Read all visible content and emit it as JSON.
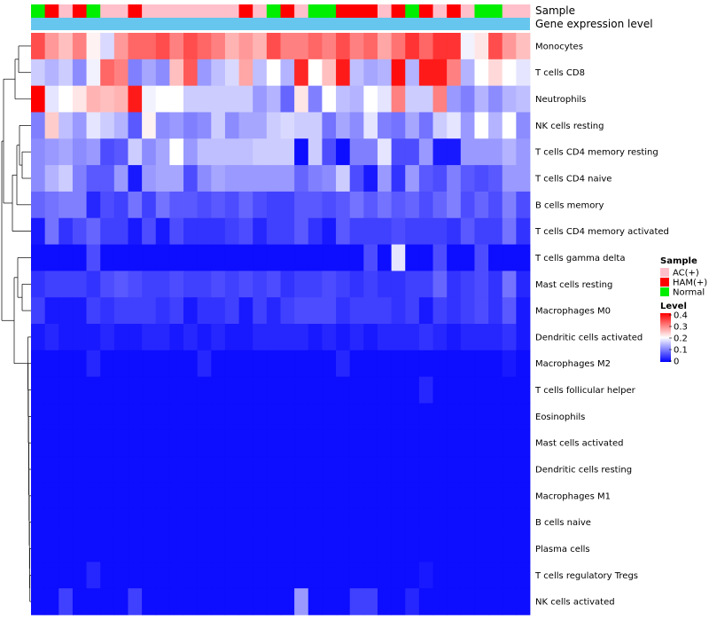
{
  "chart_data": {
    "type": "heatmap",
    "annotation_rows": [
      "Sample",
      "Gene expression level"
    ],
    "row_labels": [
      "Monocytes",
      "T cells CD8",
      "Neutrophils",
      "NK cells resting",
      "T cells CD4 memory resting",
      "T cells CD4 naive",
      "B cells memory",
      "T cells CD4 memory activated",
      "T cells gamma delta",
      "Mast cells resting",
      "Macrophages M0",
      "Dendritic cells activated",
      "Macrophages M2",
      "T cells follicular helper",
      "Eosinophils",
      "Mast cells activated",
      "Dendritic cells resting",
      "Macrophages M1",
      "B cells naive",
      "Plasma cells",
      "T cells regulatory  Tregs",
      "NK cells activated"
    ],
    "sample_groups": [
      "Normal",
      "HAM(+)",
      "AC(+)",
      "HAM(+)",
      "Normal",
      "AC(+)",
      "AC(+)",
      "HAM(+)",
      "AC(+)",
      "AC(+)",
      "AC(+)",
      "AC(+)",
      "AC(+)",
      "AC(+)",
      "AC(+)",
      "HAM(+)",
      "AC(+)",
      "Normal",
      "HAM(+)",
      "AC(+)",
      "Normal",
      "Normal",
      "HAM(+)",
      "HAM(+)",
      "HAM(+)",
      "AC(+)",
      "HAM(+)",
      "Normal",
      "HAM(+)",
      "AC(+)",
      "HAM(+)",
      "AC(+)",
      "Normal",
      "Normal",
      "AC(+)",
      "AC(+)"
    ],
    "gene_expression_color": "#66c6ee",
    "values": [
      [
        0.34,
        0.28,
        0.25,
        0.3,
        0.21,
        0.17,
        0.28,
        0.32,
        0.32,
        0.34,
        0.3,
        0.34,
        0.32,
        0.3,
        0.26,
        0.28,
        0.26,
        0.34,
        0.3,
        0.3,
        0.32,
        0.3,
        0.34,
        0.3,
        0.32,
        0.27,
        0.31,
        0.36,
        0.32,
        0.36,
        0.36,
        0.19,
        0.22,
        0.34,
        0.28,
        0.25
      ],
      [
        0.16,
        0.14,
        0.16,
        0.11,
        0.19,
        0.32,
        0.3,
        0.1,
        0.13,
        0.11,
        0.25,
        0.33,
        0.12,
        0.15,
        0.17,
        0.27,
        0.15,
        0.2,
        0.14,
        0.37,
        0.2,
        0.25,
        0.38,
        0.15,
        0.13,
        0.14,
        0.39,
        0.14,
        0.38,
        0.38,
        0.3,
        0.14,
        0.2,
        0.23,
        0.2,
        0.18
      ],
      [
        0.4,
        0.18,
        0.2,
        0.22,
        0.26,
        0.25,
        0.26,
        0.38,
        0.19,
        0.2,
        0.2,
        0.16,
        0.16,
        0.16,
        0.16,
        0.16,
        0.12,
        0.14,
        0.08,
        0.22,
        0.1,
        0.2,
        0.15,
        0.14,
        0.2,
        0.18,
        0.3,
        0.16,
        0.16,
        0.3,
        0.12,
        0.1,
        0.14,
        0.11,
        0.14,
        0.15
      ],
      [
        0.1,
        0.24,
        0.15,
        0.12,
        0.18,
        0.16,
        0.14,
        0.07,
        0.21,
        0.11,
        0.12,
        0.1,
        0.11,
        0.16,
        0.11,
        0.13,
        0.13,
        0.16,
        0.17,
        0.16,
        0.16,
        0.09,
        0.13,
        0.11,
        0.18,
        0.1,
        0.09,
        0.13,
        0.09,
        0.16,
        0.18,
        0.12,
        0.2,
        0.14,
        0.2,
        0.11
      ],
      [
        0.11,
        0.12,
        0.13,
        0.11,
        0.12,
        0.06,
        0.07,
        0.16,
        0.11,
        0.13,
        0.2,
        0.12,
        0.15,
        0.15,
        0.15,
        0.15,
        0.16,
        0.16,
        0.16,
        0.01,
        0.16,
        0.06,
        0.01,
        0.1,
        0.1,
        0.18,
        0.06,
        0.06,
        0.12,
        0.02,
        0.02,
        0.12,
        0.12,
        0.12,
        0.14,
        0.12
      ],
      [
        0.11,
        0.14,
        0.16,
        0.1,
        0.07,
        0.07,
        0.12,
        0.02,
        0.12,
        0.13,
        0.13,
        0.06,
        0.11,
        0.13,
        0.12,
        0.12,
        0.12,
        0.12,
        0.12,
        0.08,
        0.1,
        0.11,
        0.16,
        0.06,
        0.02,
        0.12,
        0.04,
        0.12,
        0.07,
        0.06,
        0.1,
        0.07,
        0.06,
        0.07,
        0.12,
        0.12
      ],
      [
        0.08,
        0.09,
        0.1,
        0.1,
        0.03,
        0.06,
        0.05,
        0.09,
        0.05,
        0.09,
        0.07,
        0.07,
        0.06,
        0.07,
        0.06,
        0.08,
        0.06,
        0.05,
        0.05,
        0.07,
        0.07,
        0.06,
        0.07,
        0.09,
        0.07,
        0.09,
        0.07,
        0.08,
        0.06,
        0.08,
        0.1,
        0.06,
        0.08,
        0.06,
        0.1,
        0.06
      ],
      [
        0.02,
        0.09,
        0.04,
        0.06,
        0.08,
        0.05,
        0.05,
        0.02,
        0.06,
        0.02,
        0.06,
        0.04,
        0.04,
        0.04,
        0.05,
        0.06,
        0.03,
        0.05,
        0.05,
        0.07,
        0.04,
        0.02,
        0.07,
        0.05,
        0.05,
        0.05,
        0.06,
        0.05,
        0.05,
        0.05,
        0.04,
        0.07,
        0.05,
        0.05,
        0.09,
        0.04
      ],
      [
        0.01,
        0.01,
        0.01,
        0.01,
        0.06,
        0.01,
        0.01,
        0.01,
        0.01,
        0.01,
        0.01,
        0.01,
        0.01,
        0.01,
        0.01,
        0.01,
        0.01,
        0.01,
        0.01,
        0.01,
        0.01,
        0.01,
        0.01,
        0.01,
        0.06,
        0.01,
        0.18,
        0.01,
        0.01,
        0.06,
        0.01,
        0.01,
        0.06,
        0.01,
        0.01,
        0.01
      ],
      [
        0.04,
        0.05,
        0.05,
        0.05,
        0.04,
        0.06,
        0.07,
        0.06,
        0.05,
        0.05,
        0.06,
        0.05,
        0.05,
        0.06,
        0.05,
        0.06,
        0.05,
        0.06,
        0.04,
        0.05,
        0.05,
        0.06,
        0.05,
        0.04,
        0.05,
        0.04,
        0.04,
        0.05,
        0.05,
        0.08,
        0.04,
        0.05,
        0.06,
        0.04,
        0.09,
        0.03
      ],
      [
        0.05,
        0.02,
        0.02,
        0.02,
        0.05,
        0.04,
        0.05,
        0.05,
        0.05,
        0.04,
        0.05,
        0.02,
        0.04,
        0.04,
        0.05,
        0.02,
        0.05,
        0.03,
        0.05,
        0.06,
        0.06,
        0.06,
        0.04,
        0.05,
        0.05,
        0.05,
        0.04,
        0.05,
        0.02,
        0.05,
        0.04,
        0.05,
        0.06,
        0.04,
        0.07,
        0.02
      ],
      [
        0.02,
        0.03,
        0.02,
        0.02,
        0.02,
        0.03,
        0.02,
        0.02,
        0.03,
        0.03,
        0.02,
        0.03,
        0.02,
        0.03,
        0.02,
        0.02,
        0.03,
        0.03,
        0.03,
        0.03,
        0.02,
        0.03,
        0.02,
        0.03,
        0.02,
        0.03,
        0.03,
        0.03,
        0.04,
        0.03,
        0.02,
        0.03,
        0.03,
        0.03,
        0.04,
        0.02
      ],
      [
        0.01,
        0.01,
        0.01,
        0.01,
        0.03,
        0.01,
        0.01,
        0.01,
        0.01,
        0.01,
        0.01,
        0.01,
        0.03,
        0.01,
        0.01,
        0.01,
        0.01,
        0.01,
        0.01,
        0.01,
        0.01,
        0.01,
        0.03,
        0.01,
        0.01,
        0.01,
        0.01,
        0.01,
        0.01,
        0.01,
        0.01,
        0.01,
        0.01,
        0.01,
        0.02,
        0.01
      ],
      [
        0.01,
        0.01,
        0.01,
        0.01,
        0.01,
        0.01,
        0.01,
        0.01,
        0.01,
        0.01,
        0.01,
        0.01,
        0.01,
        0.01,
        0.01,
        0.01,
        0.01,
        0.01,
        0.01,
        0.01,
        0.01,
        0.01,
        0.01,
        0.01,
        0.01,
        0.01,
        0.01,
        0.01,
        0.03,
        0.01,
        0.01,
        0.01,
        0.01,
        0.01,
        0.01,
        0.01
      ],
      [
        0.01,
        0.01,
        0.01,
        0.01,
        0.01,
        0.01,
        0.01,
        0.01,
        0.01,
        0.01,
        0.01,
        0.01,
        0.01,
        0.01,
        0.01,
        0.01,
        0.01,
        0.01,
        0.01,
        0.01,
        0.01,
        0.01,
        0.01,
        0.01,
        0.01,
        0.01,
        0.01,
        0.01,
        0.01,
        0.01,
        0.01,
        0.01,
        0.01,
        0.01,
        0.01,
        0.01
      ],
      [
        0.01,
        0.01,
        0.01,
        0.01,
        0.01,
        0.01,
        0.01,
        0.01,
        0.01,
        0.01,
        0.01,
        0.01,
        0.01,
        0.01,
        0.01,
        0.01,
        0.01,
        0.01,
        0.01,
        0.01,
        0.01,
        0.01,
        0.01,
        0.01,
        0.01,
        0.01,
        0.01,
        0.01,
        0.01,
        0.01,
        0.01,
        0.01,
        0.01,
        0.01,
        0.01,
        0.01
      ],
      [
        0.01,
        0.01,
        0.01,
        0.01,
        0.01,
        0.01,
        0.01,
        0.01,
        0.01,
        0.01,
        0.01,
        0.01,
        0.01,
        0.01,
        0.01,
        0.01,
        0.01,
        0.01,
        0.01,
        0.01,
        0.01,
        0.01,
        0.01,
        0.01,
        0.01,
        0.01,
        0.01,
        0.01,
        0.01,
        0.01,
        0.01,
        0.01,
        0.01,
        0.01,
        0.01,
        0.01
      ],
      [
        0.01,
        0.01,
        0.01,
        0.01,
        0.01,
        0.01,
        0.01,
        0.01,
        0.01,
        0.01,
        0.01,
        0.01,
        0.01,
        0.01,
        0.01,
        0.01,
        0.01,
        0.01,
        0.01,
        0.01,
        0.01,
        0.01,
        0.01,
        0.01,
        0.01,
        0.01,
        0.01,
        0.01,
        0.01,
        0.01,
        0.01,
        0.01,
        0.01,
        0.01,
        0.01,
        0.01
      ],
      [
        0.01,
        0.01,
        0.01,
        0.01,
        0.01,
        0.01,
        0.01,
        0.01,
        0.01,
        0.01,
        0.01,
        0.01,
        0.01,
        0.01,
        0.01,
        0.01,
        0.01,
        0.01,
        0.01,
        0.01,
        0.01,
        0.01,
        0.01,
        0.01,
        0.01,
        0.01,
        0.01,
        0.01,
        0.01,
        0.01,
        0.01,
        0.01,
        0.01,
        0.01,
        0.01,
        0.01
      ],
      [
        0.01,
        0.01,
        0.01,
        0.01,
        0.01,
        0.01,
        0.01,
        0.01,
        0.01,
        0.01,
        0.01,
        0.01,
        0.01,
        0.01,
        0.01,
        0.01,
        0.01,
        0.01,
        0.01,
        0.01,
        0.01,
        0.01,
        0.01,
        0.01,
        0.01,
        0.01,
        0.01,
        0.01,
        0.01,
        0.01,
        0.01,
        0.01,
        0.01,
        0.01,
        0.01,
        0.01
      ],
      [
        0.01,
        0.01,
        0.01,
        0.01,
        0.03,
        0.01,
        0.01,
        0.01,
        0.01,
        0.01,
        0.01,
        0.01,
        0.01,
        0.01,
        0.01,
        0.01,
        0.01,
        0.01,
        0.01,
        0.01,
        0.01,
        0.01,
        0.01,
        0.01,
        0.01,
        0.01,
        0.01,
        0.01,
        0.02,
        0.01,
        0.01,
        0.01,
        0.01,
        0.01,
        0.01,
        0.01
      ],
      [
        0.01,
        0.01,
        0.05,
        0.01,
        0.01,
        0.01,
        0.01,
        0.05,
        0.01,
        0.01,
        0.01,
        0.01,
        0.01,
        0.01,
        0.01,
        0.01,
        0.01,
        0.01,
        0.01,
        0.12,
        0.01,
        0.01,
        0.01,
        0.05,
        0.05,
        0.01,
        0.01,
        0.03,
        0.01,
        0.01,
        0.01,
        0.01,
        0.01,
        0.01,
        0.01,
        0.01
      ]
    ],
    "scale": {
      "min": 0,
      "max": 0.4,
      "low_color": "#0000ff",
      "mid_color": "#ffffff",
      "high_color": "#ff0000"
    },
    "legend": {
      "sample_title": "Sample",
      "sample_items": [
        {
          "label": "AC(+)",
          "color": "#ffc0cb"
        },
        {
          "label": "HAM(+)",
          "color": "#ff0000"
        },
        {
          "label": "Normal",
          "color": "#00ee00"
        }
      ],
      "level_title": "Level",
      "level_ticks": [
        "0.4",
        "0.3",
        "0.2",
        "0.1",
        "0"
      ],
      "placement": "right"
    }
  }
}
